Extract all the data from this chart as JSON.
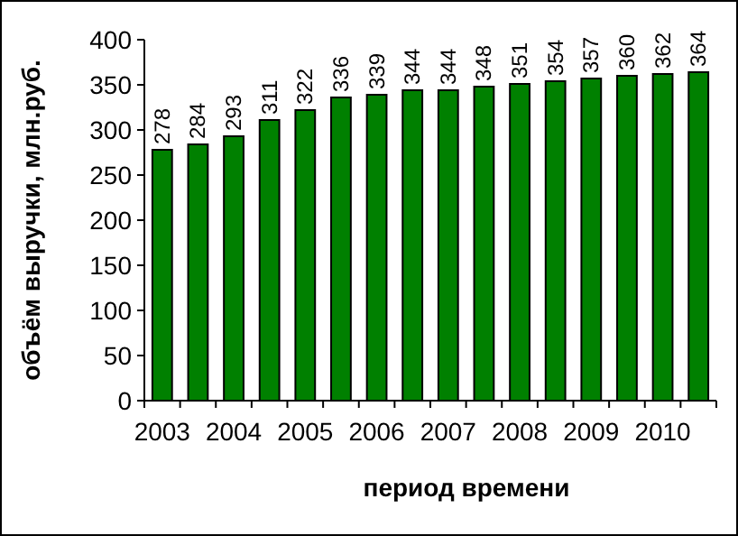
{
  "chart_data": {
    "type": "bar",
    "xlabel": "период времени",
    "ylabel": "объём выручки, млн.руб.",
    "categories": [
      "2003",
      null,
      "2004",
      null,
      "2005",
      null,
      "2006",
      null,
      "2007",
      null,
      "2008",
      null,
      "2009",
      null,
      "2010",
      null
    ],
    "values": [
      278,
      284,
      293,
      311,
      322,
      336,
      339,
      344,
      344,
      348,
      351,
      354,
      357,
      360,
      362,
      364
    ],
    "color": "#008000",
    "ylim": [
      0,
      400
    ],
    "yticks": [
      0,
      50,
      100,
      150,
      200,
      250,
      300,
      350,
      400
    ],
    "data_labels": true,
    "grid": false
  }
}
